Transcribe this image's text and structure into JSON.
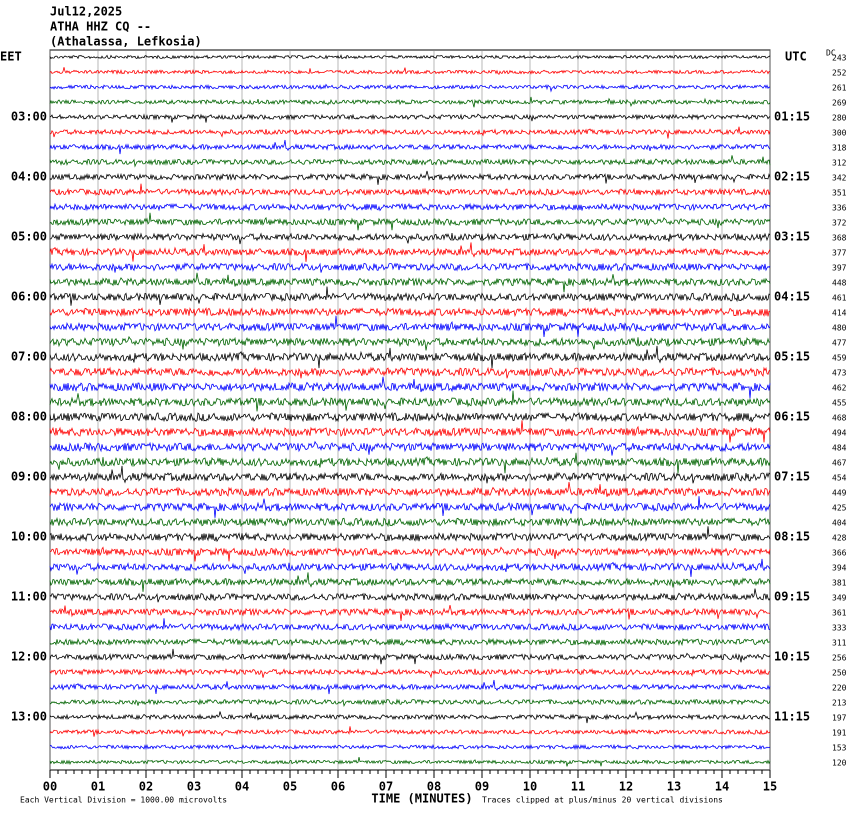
{
  "header": {
    "date": "Jul12,2025",
    "station": "ATHA HHZ CQ --",
    "location": "(Athalassa, Lefkosia)"
  },
  "left": {
    "zone": "EET",
    "times": [
      "03:00",
      "04:00",
      "05:00",
      "06:00",
      "07:00",
      "08:00",
      "09:00",
      "10:00",
      "11:00",
      "12:00",
      "13:00"
    ]
  },
  "right": {
    "zone": "UTC",
    "times": [
      "01:15",
      "02:15",
      "03:15",
      "04:15",
      "05:15",
      "06:15",
      "07:15",
      "08:15",
      "09:15",
      "10:15",
      "11:15"
    ]
  },
  "dc": {
    "label": "DC",
    "values": [
      243,
      252,
      261,
      269,
      280,
      300,
      318,
      312,
      342,
      351,
      336,
      372,
      368,
      377,
      397,
      448,
      461,
      414,
      480,
      477,
      459,
      473,
      462,
      455,
      468,
      494,
      484,
      467,
      454,
      449,
      425,
      404,
      428,
      366,
      394,
      381,
      349,
      361,
      333,
      311,
      256,
      250,
      220,
      213,
      197,
      191,
      153,
      120
    ]
  },
  "x_axis": {
    "ticks": [
      "00",
      "01",
      "02",
      "03",
      "04",
      "05",
      "06",
      "07",
      "08",
      "09",
      "10",
      "11",
      "12",
      "13",
      "14",
      "15"
    ],
    "label": "TIME (MINUTES)"
  },
  "footer": {
    "scale": "Each Vertical Division = 1000.00 microvolts",
    "clip": "Traces clipped at plus/minus 20 vertical divisions"
  }
}
